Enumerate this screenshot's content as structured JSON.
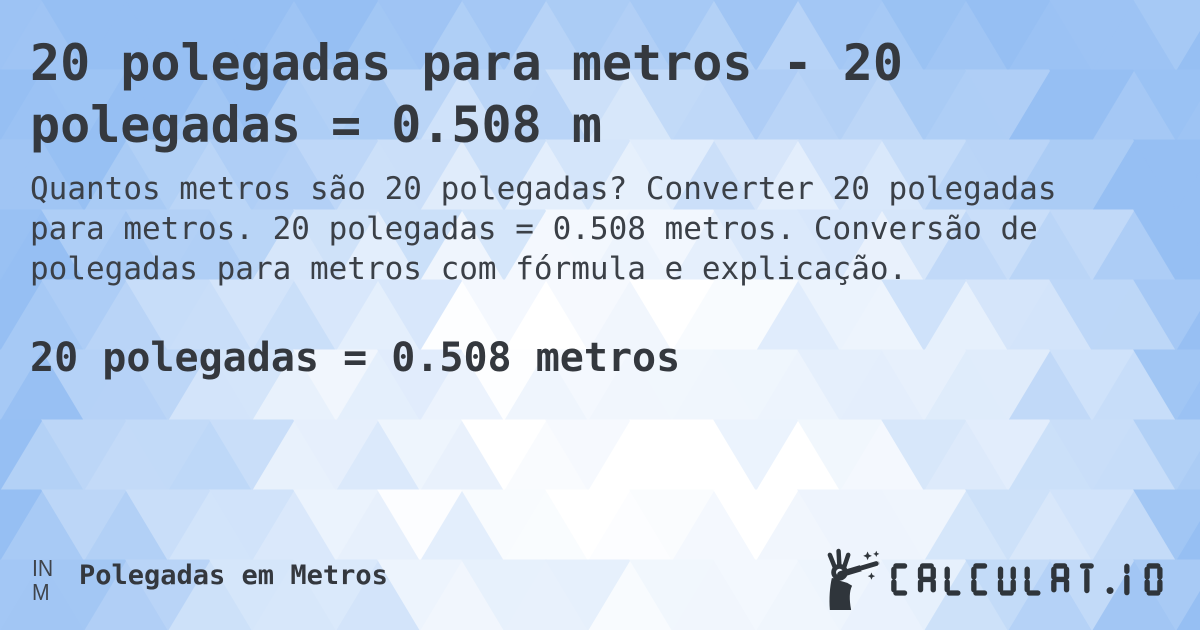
{
  "content": {
    "title_lines": [
      "20 polegadas para metros - 20",
      "polegadas = 0.508 m"
    ],
    "description_lines": [
      "Quantos metros são 20 polegadas? Converter 20 polegadas",
      "para metros. 20 polegadas = 0.508 metros. Conversão de",
      "polegadas para metros com fórmula e explicação."
    ],
    "result": "20 polegadas = 0.508 metros"
  },
  "footer": {
    "badge_line1": "IN",
    "badge_line2": "M",
    "label": "Polegadas em Metros",
    "brand": "CALCULAT.IO",
    "brand_icon": "magic-wand-hand-icon"
  },
  "colors": {
    "text_dark": "#34383e",
    "logo_dark": "#2f353b",
    "pattern_blue": "#96bff3",
    "pattern_white": "#ffffff"
  }
}
